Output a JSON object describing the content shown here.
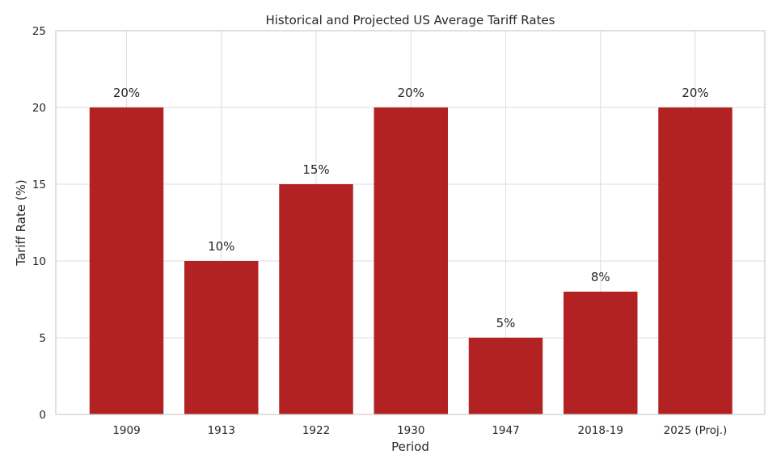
{
  "chart_data": {
    "type": "bar",
    "title": "Historical and Projected US Average Tariff Rates",
    "xlabel": "Period",
    "ylabel": "Tariff Rate (%)",
    "categories": [
      "1909",
      "1913",
      "1922",
      "1930",
      "1947",
      "2018-19",
      "2025 (Proj.)"
    ],
    "values": [
      20,
      10,
      15,
      20,
      5,
      8,
      20
    ],
    "data_labels": [
      "20%",
      "10%",
      "15%",
      "20%",
      "5%",
      "8%",
      "20%"
    ],
    "ylim": [
      0,
      25
    ],
    "yticks": [
      0,
      5,
      10,
      15,
      20,
      25
    ],
    "grid": true,
    "bar_color": "#b22222"
  }
}
